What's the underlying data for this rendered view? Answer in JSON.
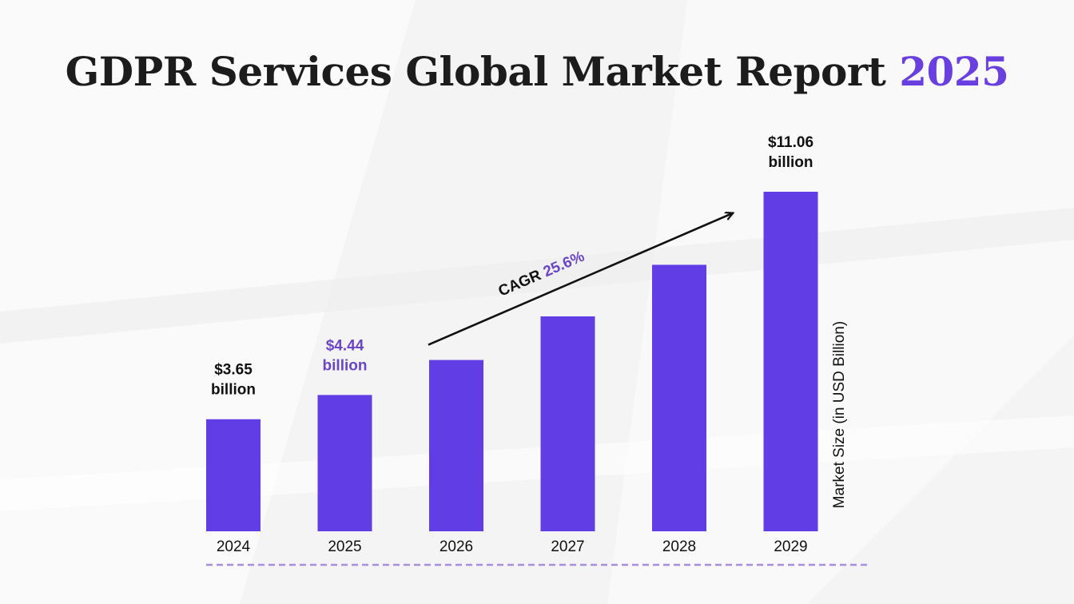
{
  "title": {
    "main": "GDPR Services Global Market Report",
    "year": "2025"
  },
  "colors": {
    "bar": "#613de6",
    "accent": "#6b45c9",
    "text": "#111111",
    "title": "#1c1c1c",
    "dashed_line": "#a98de0"
  },
  "chart_data": {
    "type": "bar",
    "title": "GDPR Services Global Market Report 2025",
    "categories": [
      "2024",
      "2025",
      "2026",
      "2027",
      "2028",
      "2029"
    ],
    "values": [
      3.65,
      4.44,
      5.58,
      7.0,
      8.68,
      11.06
    ],
    "ylabel": "Market Size (in USD Billion)",
    "xlabel": "",
    "ylim": [
      0,
      11.06
    ],
    "grid": false,
    "data_labels": [
      {
        "index": 0,
        "lines": [
          "$3.65",
          "billion"
        ],
        "color": "#111111"
      },
      {
        "index": 1,
        "lines": [
          "$4.44",
          "billion"
        ],
        "color": "#6b45c9"
      },
      {
        "index": 5,
        "lines": [
          "$11.06",
          "billion"
        ],
        "color": "#111111"
      }
    ],
    "annotation": {
      "label": "CAGR",
      "value": "25.6%",
      "from_index": 2,
      "to_index": 5
    }
  }
}
